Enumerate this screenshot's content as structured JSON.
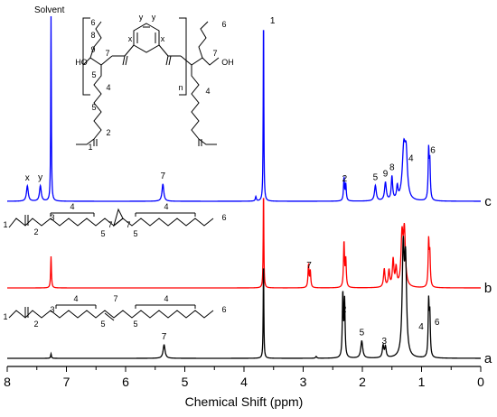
{
  "chart_data": {
    "type": "line",
    "xlabel": "Chemical Shift (ppm)",
    "ylabel": "",
    "xlim": [
      8,
      0
    ],
    "x_reversed": true,
    "x_ticks": [
      8,
      7,
      6,
      5,
      4,
      3,
      2,
      1,
      0
    ],
    "grid": false,
    "solvent_label": "Solvent",
    "series": [
      {
        "name": "c",
        "color": "#0000ff",
        "baseline": 0.0,
        "peaks": [
          {
            "x": 7.66,
            "h": 0.17,
            "w": 0.018
          },
          {
            "x": 7.44,
            "h": 0.17,
            "w": 0.018
          },
          {
            "x": 7.26,
            "h": 2.1,
            "w": 0.006
          },
          {
            "x": 5.37,
            "h": 0.19,
            "w": 0.018
          },
          {
            "x": 3.8,
            "h": 0.05,
            "w": 0.01
          },
          {
            "x": 3.67,
            "h": 2.1,
            "w": 0.006
          },
          {
            "x": 2.31,
            "h": 0.25,
            "w": 0.01
          },
          {
            "x": 2.28,
            "h": 0.18,
            "w": 0.01
          },
          {
            "x": 1.78,
            "h": 0.17,
            "w": 0.018
          },
          {
            "x": 1.61,
            "h": 0.2,
            "w": 0.018
          },
          {
            "x": 1.5,
            "h": 0.26,
            "w": 0.014
          },
          {
            "x": 1.41,
            "h": 0.14,
            "w": 0.014
          },
          {
            "x": 1.3,
            "h": 0.55,
            "w": 0.03
          },
          {
            "x": 1.26,
            "h": 0.45,
            "w": 0.025
          },
          {
            "x": 0.88,
            "h": 0.54,
            "w": 0.01
          },
          {
            "x": 0.86,
            "h": 0.4,
            "w": 0.01
          }
        ],
        "labels": [
          {
            "x": 7.66,
            "text": "x"
          },
          {
            "x": 7.44,
            "text": "y"
          },
          {
            "x": 5.37,
            "text": "7"
          },
          {
            "x": 2.3,
            "text": "2"
          },
          {
            "x": 1.78,
            "text": "5"
          },
          {
            "x": 1.61,
            "text": "9"
          },
          {
            "x": 1.5,
            "text": "8"
          },
          {
            "x": 1.24,
            "text": "4"
          },
          {
            "x": 0.87,
            "text": "6"
          },
          {
            "x": 3.67,
            "text": "1"
          }
        ],
        "trace_label": "c"
      },
      {
        "name": "b",
        "color": "#ff0000",
        "baseline": 0.0,
        "peaks": [
          {
            "x": 7.26,
            "h": 0.35,
            "w": 0.008
          },
          {
            "x": 3.67,
            "h": 1.1,
            "w": 0.006
          },
          {
            "x": 2.91,
            "h": 0.25,
            "w": 0.01
          },
          {
            "x": 2.88,
            "h": 0.18,
            "w": 0.01
          },
          {
            "x": 2.31,
            "h": 0.5,
            "w": 0.01
          },
          {
            "x": 2.28,
            "h": 0.3,
            "w": 0.01
          },
          {
            "x": 1.63,
            "h": 0.2,
            "w": 0.015
          },
          {
            "x": 1.55,
            "h": 0.18,
            "w": 0.015
          },
          {
            "x": 1.48,
            "h": 0.3,
            "w": 0.015
          },
          {
            "x": 1.43,
            "h": 0.2,
            "w": 0.015
          },
          {
            "x": 1.33,
            "h": 0.55,
            "w": 0.02
          },
          {
            "x": 1.29,
            "h": 0.6,
            "w": 0.02
          },
          {
            "x": 0.88,
            "h": 0.5,
            "w": 0.01
          },
          {
            "x": 0.86,
            "h": 0.35,
            "w": 0.01
          }
        ],
        "labels": [
          {
            "x": 2.9,
            "text": "7"
          }
        ],
        "trace_label": "b"
      },
      {
        "name": "a",
        "color": "#000000",
        "baseline": 0.0,
        "peaks": [
          {
            "x": 7.26,
            "h": 0.05,
            "w": 0.008
          },
          {
            "x": 5.35,
            "h": 0.15,
            "w": 0.02
          },
          {
            "x": 3.67,
            "h": 1.1,
            "w": 0.006
          },
          {
            "x": 2.78,
            "h": 0.02,
            "w": 0.012
          },
          {
            "x": 2.33,
            "h": 0.7,
            "w": 0.01
          },
          {
            "x": 2.3,
            "h": 0.62,
            "w": 0.01
          },
          {
            "x": 2.01,
            "h": 0.19,
            "w": 0.02
          },
          {
            "x": 1.65,
            "h": 0.13,
            "w": 0.015
          },
          {
            "x": 1.61,
            "h": 0.12,
            "w": 0.015
          },
          {
            "x": 1.31,
            "h": 1.15,
            "w": 0.02
          },
          {
            "x": 1.27,
            "h": 1.0,
            "w": 0.02
          },
          {
            "x": 0.88,
            "h": 0.6,
            "w": 0.01
          },
          {
            "x": 0.86,
            "h": 0.45,
            "w": 0.01
          }
        ],
        "labels": [
          {
            "x": 5.35,
            "text": "7"
          },
          {
            "x": 2.31,
            "text": "2"
          },
          {
            "x": 2.01,
            "text": "5"
          },
          {
            "x": 1.63,
            "text": "3"
          }
        ],
        "trace_label": "a"
      }
    ],
    "structure_labels": {
      "polymer": [
        "6",
        "8",
        "9",
        "7",
        "7",
        "HO",
        "OH",
        "5",
        "4",
        "5",
        "2",
        "1",
        "x",
        "x",
        "y",
        "y",
        "n",
        "4",
        "6"
      ],
      "epoxide": [
        "1",
        "3",
        "4",
        "2",
        "5",
        "7",
        "7",
        "5",
        "4",
        "6"
      ],
      "olefin": [
        "1",
        "3",
        "4",
        "7",
        "2",
        "5",
        "5",
        "4",
        "6"
      ]
    }
  }
}
